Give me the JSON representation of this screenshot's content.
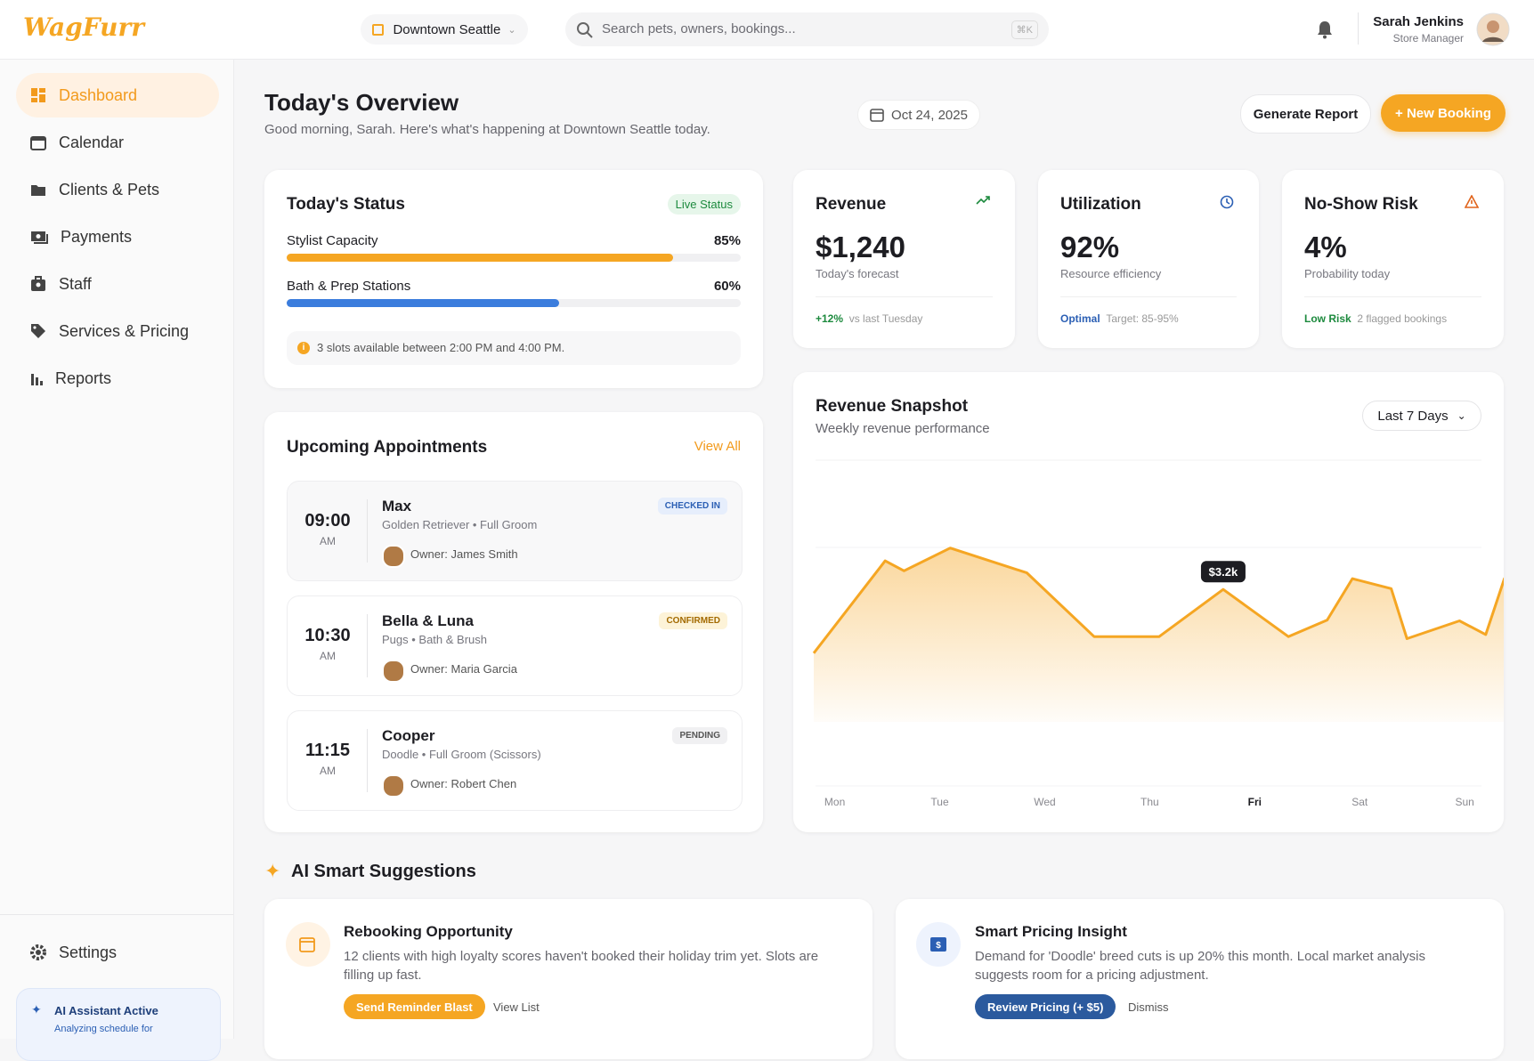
{
  "header": {
    "logo": "WagFurr",
    "location": "Downtown Seattle",
    "search_placeholder": "Search pets, owners, bookings...",
    "shortcut": "⌘K",
    "user_name": "Sarah Jenkins",
    "user_role": "Store Manager"
  },
  "sidebar": {
    "nav": [
      "Dashboard",
      "Calendar",
      "Clients & Pets",
      "Payments",
      "Staff",
      "Services & Pricing",
      "Reports"
    ],
    "settings": "Settings",
    "assistant": {
      "title": "AI Assistant Active",
      "text": "Analyzing schedule for"
    }
  },
  "page": {
    "title": "Today's Overview",
    "subtitle": "Good morning, Sarah. Here's what's happening at Downtown Seattle today.",
    "date": "Oct 24, 2025",
    "buttons": [
      "Generate Report",
      "+ New Booking"
    ]
  },
  "status": {
    "title": "Today's Status",
    "badge": "Live Status",
    "rows": [
      {
        "label": "Stylist Capacity",
        "value": 85,
        "value_label": "85%",
        "color": "#f5a623"
      },
      {
        "label": "Bath & Prep Stations",
        "value": 60,
        "value_label": "60%",
        "color": "#3b7ddd"
      }
    ],
    "note": "3 slots available between 2:00 PM and 4:00 PM."
  },
  "metrics": [
    {
      "title": "Revenue",
      "value": "$1,240",
      "caption": "Today's forecast",
      "tag": "+12%",
      "note": "vs last Tuesday"
    },
    {
      "title": "Utilization",
      "value": "92%",
      "caption": "Resource efficiency",
      "tag": "Optimal",
      "note": "Target: 85-95%"
    },
    {
      "title": "No-Show Risk",
      "value": "4%",
      "caption": "Probability today",
      "tag": "Low Risk",
      "note": "2 flagged bookings"
    }
  ],
  "appointments": {
    "title": "Upcoming Appointments",
    "link": "View All",
    "items": [
      {
        "time": "09:00",
        "period": "AM",
        "name": "Max",
        "details": "Golden Retriever • Full Groom",
        "owner": "Owner: James Smith",
        "status": "CHECKED IN"
      },
      {
        "time": "10:30",
        "period": "AM",
        "name": "Bella & Luna",
        "details": "Pugs • Bath & Brush",
        "owner": "Owner: Maria Garcia",
        "status": "CONFIRMED"
      },
      {
        "time": "11:15",
        "period": "AM",
        "name": "Cooper",
        "details": "Doodle • Full Groom (Scissors)",
        "owner": "Owner: Robert Chen",
        "status": "PENDING"
      }
    ]
  },
  "chart_data": {
    "type": "area",
    "title": "Revenue Snapshot",
    "subtitle": "Weekly revenue performance",
    "range": "Last 7 Days",
    "color": "#f5a623",
    "x": [
      -0.2,
      0.48,
      0.66,
      1.1,
      1.83,
      2.47,
      3.09,
      3.7,
      4.32,
      4.69,
      4.93,
      5.3,
      5.45,
      5.95,
      6.2,
      6.38
    ],
    "values": [
      1.66,
      3.89,
      3.65,
      4.2,
      3.6,
      2.06,
      2.06,
      3.2,
      2.06,
      2.46,
      3.46,
      3.22,
      2.01,
      2.44,
      2.11,
      3.48
    ],
    "value_labels": [
      null,
      null,
      null,
      null,
      null,
      null,
      null,
      "$3.2k",
      null,
      null,
      null,
      null,
      null,
      null,
      null,
      null
    ],
    "xlim": [
      -0.2,
      6.38
    ],
    "ylim": [
      0,
      6
    ],
    "xticks": [
      {
        "value": 0,
        "label": "Mon"
      },
      {
        "value": 1,
        "label": "Tue"
      },
      {
        "value": 2,
        "label": "Wed"
      },
      {
        "value": 3,
        "label": "Thu"
      },
      {
        "value": 4,
        "label": "Fri"
      },
      {
        "value": 5,
        "label": "Sat"
      },
      {
        "value": 6,
        "label": "Sun"
      }
    ]
  },
  "suggestions": {
    "title": "AI Smart Suggestions",
    "cards": [
      {
        "title": "Rebooking Opportunity",
        "text": "12 clients with high loyalty scores haven't booked their holiday trim yet. Slots are filling up fast.",
        "primary": "Send Reminder Blast",
        "secondary": "View List"
      },
      {
        "title": "Smart Pricing Insight",
        "text": "Demand for 'Doodle' breed cuts is up 20% this month. Local market analysis suggests room for a pricing adjustment.",
        "primary": "Review Pricing (+ $5)",
        "secondary": "Dismiss"
      }
    ]
  }
}
